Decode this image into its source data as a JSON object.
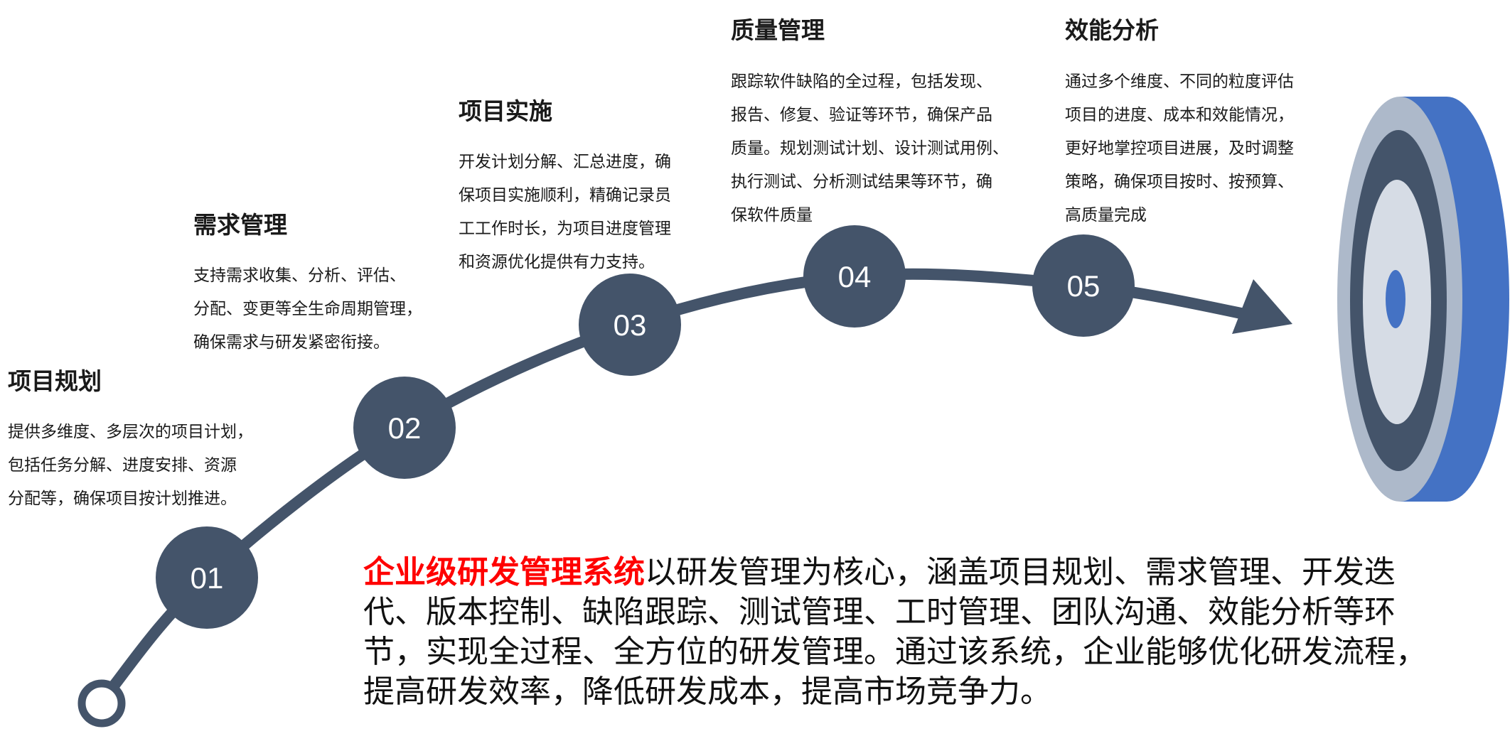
{
  "colors": {
    "node": "#44546A",
    "target_blue": "#4472C4",
    "target_gray": "#ADB9CA",
    "target_light": "#D6DCE5",
    "highlight": "#FF0000"
  },
  "stages": [
    {
      "number": "01",
      "title": "项目规划",
      "lines": [
        "提供多维度、多层次的项目计划，",
        "包括任务分解、进度安排、资源",
        "分配等，确保项目按计划推进。"
      ]
    },
    {
      "number": "02",
      "title": "需求管理",
      "lines": [
        "支持需求收集、分析、评估、",
        "分配、变更等全生命周期管理，",
        "确保需求与研发紧密衔接。"
      ]
    },
    {
      "number": "03",
      "title": "项目实施",
      "lines": [
        "开发计划分解、汇总进度，确",
        "保项目实施顺利，精确记录员",
        "工工作时长，为项目进度管理",
        "和资源优化提供有力支持。"
      ]
    },
    {
      "number": "04",
      "title": "质量管理",
      "lines": [
        "跟踪软件缺陷的全过程，包括发现、",
        "报告、修复、验证等环节，确保产品",
        "质量。规划测试计划、设计测试用例、",
        "执行测试、分析测试结果等环节，确",
        "保软件质量"
      ]
    },
    {
      "number": "05",
      "title": "效能分析",
      "lines": [
        "通过多个维度、不同的粒度评估",
        "项目的进度、成本和效能情况，",
        "更好地掌控项目进展，及时调整",
        "策略，确保项目按时、按预算、",
        "高质量完成"
      ]
    }
  ],
  "summary": {
    "highlight": "企业级研发管理系统",
    "lines": [
      "以研发管理为核心，涵盖项目规划、需求管理、开发迭",
      "代、版本控制、缺陷跟踪、测试管理、工时管理、团队沟通、效能分析等环",
      "节，实现全过程、全方位的研发管理。通过该系统，企业能够优化研发流程，",
      "提高研发效率，降低研发成本，提高市场竞争力。"
    ]
  },
  "icons": {
    "start": "start-ring-icon",
    "arrow": "arrow-head-icon",
    "target": "target-icon"
  }
}
